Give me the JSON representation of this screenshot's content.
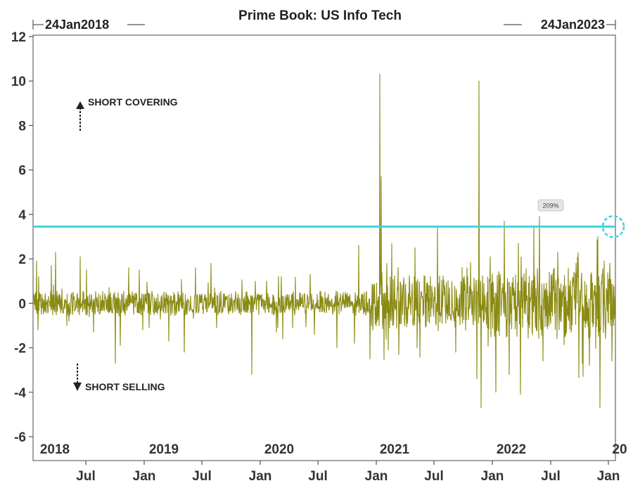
{
  "chart_data": {
    "type": "line",
    "title": "Prime Book: US Info Tech",
    "range_start_label": "24Jan2018",
    "range_end_label": "24Jan2023",
    "y_ticks": [
      "12",
      "10",
      "8",
      "6",
      "4",
      "2",
      "0",
      "-2",
      "-4",
      "-6"
    ],
    "ylim": [
      -6,
      12
    ],
    "x_year_labels": [
      "2018",
      "2019",
      "2020",
      "2021",
      "2022",
      "20"
    ],
    "x_month_labels": [
      "Jul",
      "Jan",
      "Jul",
      "Jan",
      "Jul",
      "Jan",
      "Jul",
      "Jan",
      "Jul",
      "Jan"
    ],
    "x_range": [
      "2018-01-24",
      "2023-01-24"
    ],
    "threshold": 3.45,
    "annotations": {
      "short_covering": "SHORT COVERING",
      "short_selling": "SHORT SELLING",
      "badge": "209%"
    },
    "colors": {
      "series": "#8a8a12",
      "threshold": "#3fd3e0",
      "axis": "#555555"
    },
    "spikes": [
      {
        "date": "2018-02-05",
        "value": 1.9
      },
      {
        "date": "2018-02-09",
        "value": -1.2
      },
      {
        "date": "2018-03-22",
        "value": 1.7
      },
      {
        "date": "2018-04-05",
        "value": 2.3
      },
      {
        "date": "2018-05-10",
        "value": -1.0
      },
      {
        "date": "2018-06-20",
        "value": 2.1
      },
      {
        "date": "2018-07-10",
        "value": 1.5
      },
      {
        "date": "2018-08-01",
        "value": -1.3
      },
      {
        "date": "2018-10-10",
        "value": -2.7
      },
      {
        "date": "2018-10-24",
        "value": -1.9
      },
      {
        "date": "2018-11-20",
        "value": 1.6
      },
      {
        "date": "2018-12-24",
        "value": 1.5
      },
      {
        "date": "2019-01-04",
        "value": -1.2
      },
      {
        "date": "2019-03-25",
        "value": -1.7
      },
      {
        "date": "2019-05-13",
        "value": -2.2
      },
      {
        "date": "2019-06-18",
        "value": 1.6
      },
      {
        "date": "2019-08-05",
        "value": 1.8
      },
      {
        "date": "2019-08-23",
        "value": -1.1
      },
      {
        "date": "2019-12-10",
        "value": -3.2
      },
      {
        "date": "2020-01-27",
        "value": 1.0
      },
      {
        "date": "2020-02-27",
        "value": -1.3
      },
      {
        "date": "2020-03-12",
        "value": 1.2
      },
      {
        "date": "2020-03-16",
        "value": -1.6
      },
      {
        "date": "2020-06-11",
        "value": 1.3
      },
      {
        "date": "2020-06-25",
        "value": -1.4
      },
      {
        "date": "2020-09-03",
        "value": -2.0
      },
      {
        "date": "2020-10-28",
        "value": -1.8
      },
      {
        "date": "2020-11-09",
        "value": 2.6
      },
      {
        "date": "2020-12-15",
        "value": -2.5
      },
      {
        "date": "2021-01-15",
        "value": 10.3
      },
      {
        "date": "2021-01-20",
        "value": 5.7
      },
      {
        "date": "2021-02-10",
        "value": -2.1
      },
      {
        "date": "2021-03-15",
        "value": -2.3
      },
      {
        "date": "2021-05-12",
        "value": -2.0
      },
      {
        "date": "2021-07-14",
        "value": 3.4
      },
      {
        "date": "2021-09-10",
        "value": -2.2
      },
      {
        "date": "2021-10-15",
        "value": 1.6
      },
      {
        "date": "2021-11-22",
        "value": 10.0
      },
      {
        "date": "2021-11-15",
        "value": -3.4
      },
      {
        "date": "2021-11-29",
        "value": -4.7
      },
      {
        "date": "2021-12-28",
        "value": 2.1
      },
      {
        "date": "2022-01-14",
        "value": -4.0
      },
      {
        "date": "2022-02-10",
        "value": 3.7
      },
      {
        "date": "2022-02-24",
        "value": -3.2
      },
      {
        "date": "2022-03-25",
        "value": 2.7
      },
      {
        "date": "2022-04-01",
        "value": -4.1
      },
      {
        "date": "2022-05-13",
        "value": 3.5
      },
      {
        "date": "2022-05-31",
        "value": 3.9
      },
      {
        "date": "2022-06-10",
        "value": -2.6
      },
      {
        "date": "2022-07-28",
        "value": 2.3
      },
      {
        "date": "2022-09-06",
        "value": -1.3
      },
      {
        "date": "2022-09-22",
        "value": 1.8
      },
      {
        "date": "2022-10-13",
        "value": -2.7
      },
      {
        "date": "2022-11-04",
        "value": -2.8
      },
      {
        "date": "2022-11-30",
        "value": 3.0
      },
      {
        "date": "2022-12-06",
        "value": -4.7
      },
      {
        "date": "2022-12-20",
        "value": 1.9
      },
      {
        "date": "2023-01-06",
        "value": 1.8
      },
      {
        "date": "2023-01-12",
        "value": -2.6
      }
    ]
  }
}
